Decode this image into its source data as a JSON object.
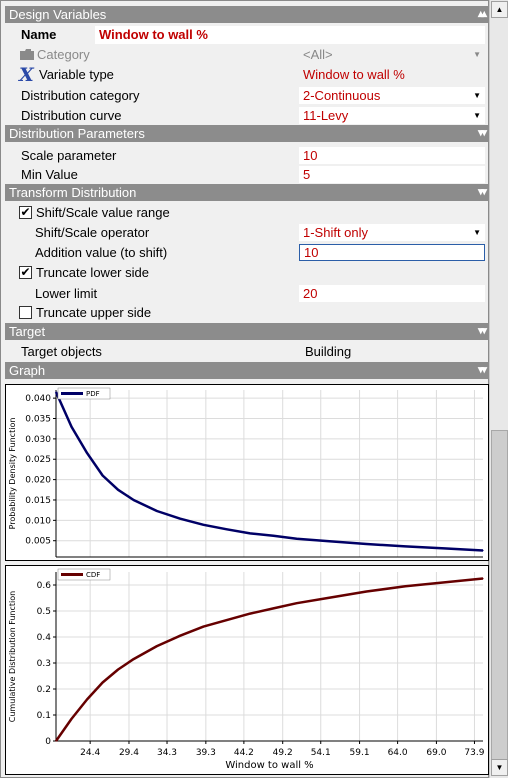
{
  "design_variables": {
    "header": "Design Variables",
    "name_label": "Name",
    "name_value": "Window to wall %",
    "category_label": "Category",
    "category_value": "<All>",
    "variable_type_label": "Variable type",
    "variable_type_value": "Window to wall %",
    "distribution_category_label": "Distribution category",
    "distribution_category_value": "2-Continuous",
    "distribution_curve_label": "Distribution curve",
    "distribution_curve_value": "11-Levy"
  },
  "distribution_parameters": {
    "header": "Distribution Parameters",
    "scale_label": "Scale parameter",
    "scale_value": "10",
    "min_label": "Min Value",
    "min_value": "5"
  },
  "transform_distribution": {
    "header": "Transform Distribution",
    "shift_scale_label": "Shift/Scale value range",
    "shift_scale_checked": true,
    "operator_label": "Shift/Scale operator",
    "operator_value": "1-Shift only",
    "addition_label": "Addition value (to shift)",
    "addition_value": "10",
    "truncate_lower_label": "Truncate lower side",
    "truncate_lower_checked": true,
    "lower_limit_label": "Lower limit",
    "lower_limit_value": "20",
    "truncate_upper_label": "Truncate upper side",
    "truncate_upper_checked": false
  },
  "target": {
    "header": "Target",
    "objects_label": "Target objects",
    "objects_value": "Building"
  },
  "graph": {
    "header": "Graph"
  },
  "colors": {
    "pdf": "#000066",
    "cdf": "#660000",
    "red_value": "#c00000",
    "header_bg": "#8c8c8c"
  },
  "chart_data": [
    {
      "type": "line",
      "legend": "PDF",
      "ylabel": "Probability Density Function",
      "xlim": [
        20,
        75
      ],
      "ylim": [
        0.001,
        0.042
      ],
      "yticks": [
        "0.005",
        "0.010",
        "0.015",
        "0.020",
        "0.025",
        "0.030",
        "0.035",
        "0.040"
      ],
      "ytick_values": [
        0.005,
        0.01,
        0.015,
        0.02,
        0.025,
        0.03,
        0.035,
        0.04
      ],
      "x": [
        20,
        22,
        24,
        26,
        28,
        30,
        33,
        36,
        39,
        42,
        45,
        48,
        51,
        55,
        60,
        65,
        70,
        75
      ],
      "y": [
        0.0415,
        0.033,
        0.0265,
        0.021,
        0.0175,
        0.015,
        0.0123,
        0.0104,
        0.0089,
        0.0078,
        0.0068,
        0.0062,
        0.0055,
        0.0049,
        0.0042,
        0.0036,
        0.0031,
        0.0026
      ]
    },
    {
      "type": "line",
      "legend": "CDF",
      "ylabel": "Cumulative Distribution Function",
      "xlabel": "Window to wall %",
      "xlim": [
        20,
        75
      ],
      "ylim": [
        0,
        0.65
      ],
      "yticks": [
        "0",
        "0.1",
        "0.2",
        "0.3",
        "0.4",
        "0.5",
        "0.6"
      ],
      "ytick_values": [
        0,
        0.1,
        0.2,
        0.3,
        0.4,
        0.5,
        0.6
      ],
      "xticks": [
        "24.4",
        "29.4",
        "34.3",
        "39.3",
        "44.2",
        "49.2",
        "54.1",
        "59.1",
        "64.0",
        "69.0",
        "73.9"
      ],
      "xtick_values": [
        24.4,
        29.4,
        34.3,
        39.3,
        44.2,
        49.2,
        54.1,
        59.1,
        64.0,
        69.0,
        73.9
      ],
      "x": [
        20,
        22,
        24,
        26,
        28,
        30,
        33,
        36,
        39,
        42,
        45,
        48,
        51,
        55,
        60,
        65,
        70,
        75
      ],
      "y": [
        0.0,
        0.085,
        0.16,
        0.225,
        0.275,
        0.315,
        0.365,
        0.405,
        0.44,
        0.465,
        0.49,
        0.51,
        0.53,
        0.55,
        0.575,
        0.595,
        0.61,
        0.625
      ]
    }
  ]
}
